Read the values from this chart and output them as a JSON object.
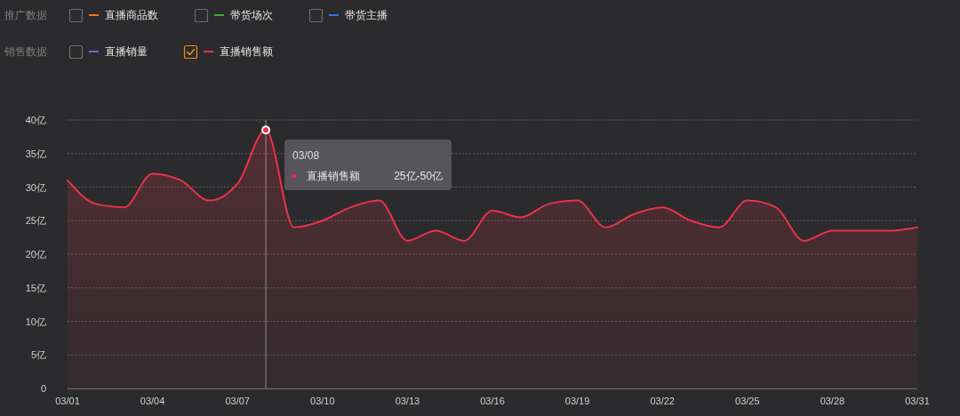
{
  "chart_data": {
    "type": "area",
    "x": [
      "--03-01",
      "--03-02",
      "--03-03",
      "--03-04",
      "--03-05",
      "--03-06",
      "--03-07",
      "--03-08",
      "--03-09",
      "--03-10",
      "--03-11",
      "--03-12",
      "--03-13",
      "--03-14",
      "--03-15",
      "--03-16",
      "--03-17",
      "--03-18",
      "--03-19",
      "--03-20",
      "--03-21",
      "--03-22",
      "--03-23",
      "--03-24",
      "--03-25",
      "--03-26",
      "--03-27",
      "--03-28",
      "--03-29",
      "--03-30",
      "--03-31"
    ],
    "xlim": [
      "--03-01",
      "--03-31"
    ],
    "xticks": [
      {
        "value": "--03-01",
        "label": "03/01"
      },
      {
        "value": "--03-04",
        "label": "03/04"
      },
      {
        "value": "--03-07",
        "label": "03/07"
      },
      {
        "value": "--03-10",
        "label": "03/10"
      },
      {
        "value": "--03-13",
        "label": "03/13"
      },
      {
        "value": "--03-16",
        "label": "03/16"
      },
      {
        "value": "--03-19",
        "label": "03/19"
      },
      {
        "value": "--03-22",
        "label": "03/22"
      },
      {
        "value": "--03-25",
        "label": "03/25"
      },
      {
        "value": "--03-28",
        "label": "03/28"
      },
      {
        "value": "--03-31",
        "label": "03/31"
      }
    ],
    "ylim": [
      0,
      40
    ],
    "yticks": [
      0,
      {
        "value": 5,
        "label": "5亿"
      },
      {
        "value": 10,
        "label": "10亿"
      },
      {
        "value": 15,
        "label": "15亿"
      },
      {
        "value": 20,
        "label": "20亿"
      },
      {
        "value": 25,
        "label": "25亿"
      },
      {
        "value": 30,
        "label": "30亿"
      },
      {
        "value": 35,
        "label": "35亿"
      },
      {
        "value": 40,
        "label": "40亿"
      }
    ],
    "grid": "y",
    "legend": "top left",
    "series": [
      {
        "name": "直播商品数",
        "color": "#f0761e",
        "values": [
          null,
          null,
          null,
          null,
          null,
          null,
          null,
          null,
          null,
          null,
          null,
          null,
          null,
          null,
          null,
          null,
          null,
          null,
          null,
          null,
          null,
          null,
          null,
          null,
          null,
          null,
          null,
          null,
          null,
          null,
          null
        ]
      },
      {
        "name": "带货场次",
        "color": "#3fae2a",
        "values": [
          null,
          null,
          null,
          null,
          null,
          null,
          null,
          null,
          null,
          null,
          null,
          null,
          null,
          null,
          null,
          null,
          null,
          null,
          null,
          null,
          null,
          null,
          null,
          null,
          null,
          null,
          null,
          null,
          null,
          null,
          null
        ]
      },
      {
        "name": "带货主播",
        "color": "#2f7be0",
        "values": [
          null,
          null,
          null,
          null,
          null,
          null,
          null,
          null,
          null,
          null,
          null,
          null,
          null,
          null,
          null,
          null,
          null,
          null,
          null,
          null,
          null,
          null,
          null,
          null,
          null,
          null,
          null,
          null,
          null,
          null,
          null
        ]
      },
      {
        "name": "直播销量",
        "color": "#7d5fd6",
        "values": [
          null,
          null,
          null,
          null,
          null,
          null,
          null,
          null,
          null,
          null,
          null,
          null,
          null,
          null,
          null,
          null,
          null,
          null,
          null,
          null,
          null,
          null,
          null,
          null,
          null,
          null,
          null,
          null,
          null,
          null,
          null
        ]
      },
      {
        "name": "直播销售额",
        "color": "#e8334b",
        "values": [
          31,
          27.5,
          27,
          32,
          31,
          28,
          30.5,
          38.5,
          24,
          25,
          27,
          28,
          22,
          23.5,
          22,
          26.5,
          25.5,
          27.5,
          28,
          24,
          26,
          27,
          25,
          24,
          28,
          27,
          22,
          23.5,
          23.5,
          23.5,
          24
        ]
      }
    ],
    "ref_lines": [
      {
        "axis": "x",
        "value": "--03-08",
        "label": "03/08",
        "color": "#8c8c8c"
      }
    ],
    "annotations": [
      "推广数据",
      "销售数据",
      "25亿-50亿"
    ]
  }
}
